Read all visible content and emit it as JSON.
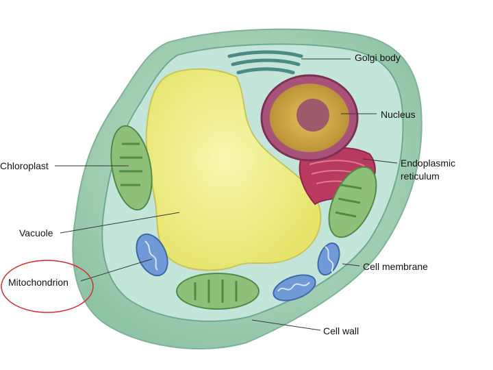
{
  "labels": {
    "golgi": "Golgi body",
    "nucleus": "Nucleus",
    "er_line1": "Endoplasmic",
    "er_line2": "reticulum",
    "chloroplast": "Chloroplast",
    "vacuole": "Vacuole",
    "mitochondrion": "Mitochondrion",
    "cell_membrane": "Cell membrane",
    "cell_wall": "Cell wall"
  },
  "colors": {
    "cell_wall": "#a9d3b4",
    "cytoplasm": "#c4e5d9",
    "vacuole": "#f3f28a",
    "chloroplast": "#8fc07a",
    "mitochondrion": "#6f9ad6",
    "nucleus": "#c8a24a",
    "er": "#b83a5e",
    "highlight_circle": "#d62b2b"
  }
}
